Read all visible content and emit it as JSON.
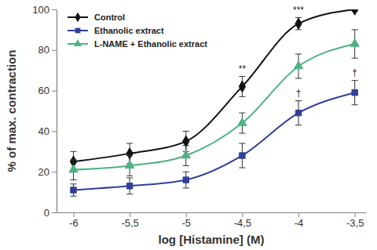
{
  "chart_data": {
    "type": "line",
    "x_label": "log [Histamine] (M)",
    "y_label": "% of max. contraction",
    "x": [
      -6,
      -5.5,
      -5,
      -4.5,
      -4,
      -3.5
    ],
    "series": [
      {
        "name": "Control",
        "color": "#111111",
        "marker": "diamond",
        "line_style": "solid",
        "values": [
          25,
          29,
          35,
          62,
          93,
          100
        ],
        "errors": [
          5,
          5,
          5,
          5,
          3,
          1
        ]
      },
      {
        "name": "Ethanolic extract",
        "color": "#2f3f9a",
        "marker": "square",
        "line_style": "solid",
        "values": [
          11,
          13,
          16,
          28,
          49,
          59
        ],
        "errors": [
          3,
          4,
          4,
          6,
          6,
          6
        ]
      },
      {
        "name": "L-NAME + Ethanolic extract",
        "color": "#4db380",
        "marker": "triangle",
        "line_style": "solid",
        "values": [
          21,
          23,
          28,
          44,
          72,
          83
        ],
        "errors": [
          5,
          5,
          5,
          5,
          6,
          7
        ]
      }
    ],
    "xlim": [
      -6.15,
      -3.4
    ],
    "xticks": [
      -6,
      {
        "value": -5.5,
        "label": "-5,5"
      },
      -5,
      {
        "value": -4.5,
        "label": "-4,5"
      },
      -4,
      {
        "value": -3.5,
        "label": "-3,5"
      }
    ],
    "ylim": [
      0,
      100
    ],
    "yticks": [
      0,
      20,
      40,
      60,
      80,
      100
    ],
    "annotations": [
      {
        "text": "**",
        "x": -4.5,
        "y": 69
      },
      {
        "text": "***",
        "x": -4,
        "y": 98
      },
      {
        "text": "†",
        "x": -4,
        "y": 57
      },
      {
        "text": "†",
        "x": -3.5,
        "y": 67
      }
    ],
    "grid": false,
    "legend": "upper left"
  }
}
